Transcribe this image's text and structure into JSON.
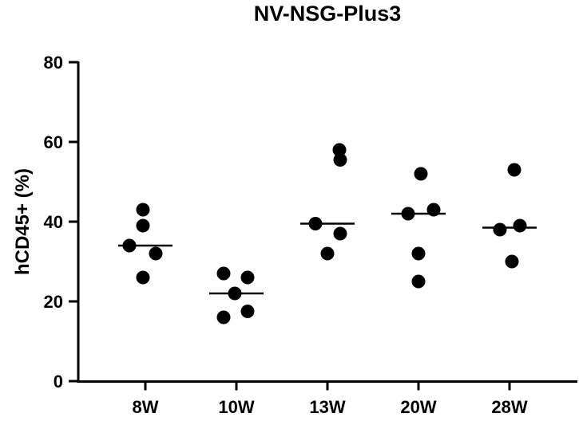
{
  "chart_data": {
    "type": "scatter",
    "title": "NV-NSG-Plus3",
    "xlabel": "",
    "ylabel": "hCD45+ (%)",
    "ylim": [
      0,
      80
    ],
    "yticks": [
      0,
      20,
      40,
      60,
      80
    ],
    "grid": false,
    "legend": "none",
    "point_color": "#000000",
    "categories": [
      "8W",
      "10W",
      "13W",
      "20W",
      "28W"
    ],
    "groups": [
      {
        "category": "8W",
        "values": [
          43,
          39,
          34,
          32,
          26
        ],
        "median": 34
      },
      {
        "category": "10W",
        "values": [
          27,
          26,
          22,
          17.5,
          16
        ],
        "median": 22
      },
      {
        "category": "13W",
        "values": [
          58,
          55.5,
          39.5,
          37,
          32
        ],
        "median": 39.5
      },
      {
        "category": "20W",
        "values": [
          52,
          43,
          42,
          32,
          25
        ],
        "median": 42
      },
      {
        "category": "28W",
        "values": [
          53,
          39,
          38,
          30
        ],
        "median": 38.5
      }
    ]
  }
}
